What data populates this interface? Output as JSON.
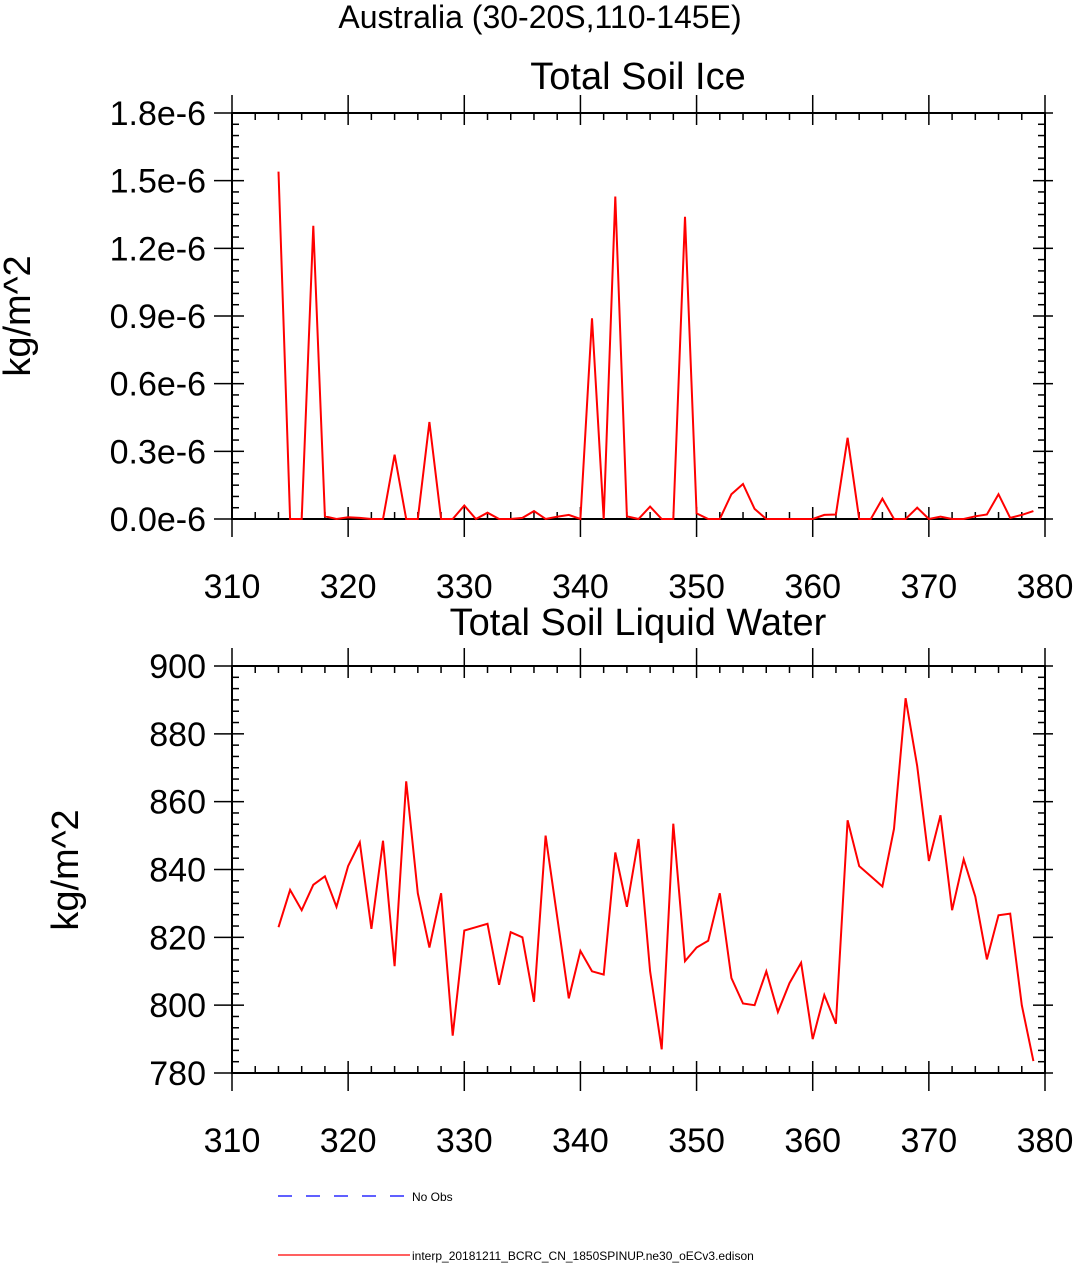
{
  "page_title": "Australia (30-20S,110-145E)",
  "colors": {
    "model_line": "#ff0000",
    "obs_line": "#0000ff",
    "axis": "#000000"
  },
  "chart_data": [
    {
      "type": "line",
      "title": "Total Soil Ice",
      "xlabel": "",
      "ylabel": "kg/m^2",
      "xlim": [
        310,
        380
      ],
      "ylim": [
        0,
        1.8e-06
      ],
      "xticks": [
        310,
        320,
        330,
        340,
        350,
        360,
        370,
        380
      ],
      "yticks": [
        0,
        3e-07,
        6e-07,
        9e-07,
        1.2e-06,
        1.5e-06,
        1.8e-06
      ],
      "ytick_labels": [
        "0.0e-6",
        "0.3e-6",
        "0.6e-6",
        "0.9e-6",
        "1.2e-6",
        "1.5e-6",
        "1.8e-6"
      ],
      "grid": false,
      "x": [
        314,
        315,
        316,
        317,
        318,
        319,
        320,
        321,
        322,
        323,
        324,
        325,
        326,
        327,
        328,
        329,
        330,
        331,
        332,
        333,
        334,
        335,
        336,
        337,
        338,
        339,
        340,
        341,
        342,
        343,
        344,
        345,
        346,
        347,
        348,
        349,
        350,
        351,
        352,
        353,
        354,
        355,
        356,
        357,
        358,
        359,
        360,
        361,
        362,
        363,
        364,
        365,
        366,
        367,
        368,
        369,
        370,
        371,
        372,
        373,
        374,
        375,
        376,
        377,
        378,
        379
      ],
      "series": [
        {
          "name": "interp_20181211_BCRC_CN_1850SPINUP.ne30_oECv3.edison",
          "values": [
            1.54e-06,
            0,
            0,
            1.3e-06,
            1.2e-08,
            0,
            8e-09,
            5e-09,
            0,
            0,
            2.85e-07,
            0,
            0,
            4.3e-07,
            0,
            0,
            6e-08,
            0,
            2.8e-08,
            0,
            0,
            5e-09,
            3.5e-08,
            0,
            1e-08,
            1.8e-08,
            0,
            8.9e-07,
            0,
            1.43e-06,
            1.2e-08,
            0,
            5.5e-08,
            0,
            0,
            1.34e-06,
            2.5e-08,
            0,
            0,
            1.1e-07,
            1.55e-07,
            4.5e-08,
            0,
            0,
            0,
            0,
            0,
            1.8e-08,
            2e-08,
            3.6e-07,
            0,
            0,
            9e-08,
            0,
            0,
            5e-08,
            0,
            1e-08,
            0,
            0,
            1.2e-08,
            2e-08,
            1.1e-07,
            5e-09,
            1.8e-08,
            3.5e-08
          ]
        }
      ]
    },
    {
      "type": "line",
      "title": "Total Soil Liquid Water",
      "xlabel": "",
      "ylabel": "kg/m^2",
      "xlim": [
        310,
        380
      ],
      "ylim": [
        780,
        900
      ],
      "xticks": [
        310,
        320,
        330,
        340,
        350,
        360,
        370,
        380
      ],
      "yticks": [
        780,
        800,
        820,
        840,
        860,
        880,
        900
      ],
      "ytick_labels": [
        "780",
        "800",
        "820",
        "840",
        "860",
        "880",
        "900"
      ],
      "grid": false,
      "x": [
        314,
        315,
        316,
        317,
        318,
        319,
        320,
        321,
        322,
        323,
        324,
        325,
        326,
        327,
        328,
        329,
        330,
        331,
        332,
        333,
        334,
        335,
        336,
        337,
        338,
        339,
        340,
        341,
        342,
        343,
        344,
        345,
        346,
        347,
        348,
        349,
        350,
        351,
        352,
        353,
        354,
        355,
        356,
        357,
        358,
        359,
        360,
        361,
        362,
        363,
        364,
        365,
        366,
        367,
        368,
        369,
        370,
        371,
        372,
        373,
        374,
        375,
        376,
        377,
        378,
        379
      ],
      "series": [
        {
          "name": "interp_20181211_BCRC_CN_1850SPINUP.ne30_oECv3.edison",
          "values": [
            823,
            834,
            828,
            835.5,
            838,
            829,
            841,
            848,
            822.5,
            848.5,
            811.5,
            866,
            833,
            817,
            833,
            791,
            822,
            823,
            824,
            806,
            821.5,
            820,
            801,
            850,
            826,
            802,
            816,
            810,
            809,
            845,
            829,
            849,
            810,
            787,
            853.5,
            813,
            817,
            819,
            833,
            808,
            800.5,
            800,
            810,
            798,
            806.5,
            812.5,
            790,
            803,
            794.5,
            854.5,
            841,
            838,
            835,
            852,
            890.5,
            870.5,
            842.5,
            856,
            828,
            843,
            832,
            813.5,
            826.5,
            827,
            800,
            783.5
          ]
        }
      ]
    }
  ],
  "legend": [
    {
      "label": "No Obs",
      "style": "dashed",
      "color": "#0000ff"
    },
    {
      "label": "interp_20181211_BCRC_CN_1850SPINUP.ne30_oECv3.edison",
      "style": "solid",
      "color": "#ff0000"
    }
  ]
}
